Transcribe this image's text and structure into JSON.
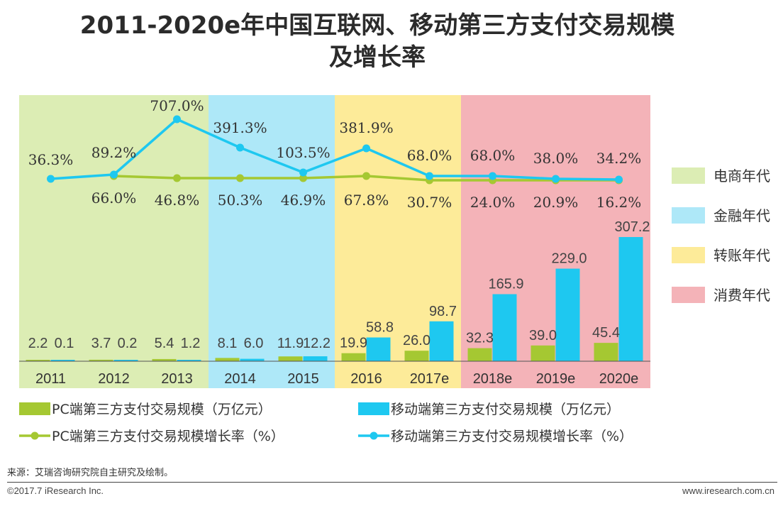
{
  "title_line1": "2011-2020e年中国互联网、移动第三方支付交易规模",
  "title_line2": "及增长率",
  "chart_data": {
    "type": "bar",
    "categories": [
      "2011",
      "2012",
      "2013",
      "2014",
      "2015",
      "2016",
      "2017e",
      "2018e",
      "2019e",
      "2020e"
    ],
    "series": [
      {
        "name": "PC端第三方支付交易规模（万亿元）",
        "kind": "bar",
        "color": "#a5c832",
        "values": [
          2.2,
          3.7,
          5.4,
          8.1,
          11.9,
          19.9,
          26.0,
          32.3,
          39.0,
          45.4
        ],
        "labels": [
          "2.2",
          "3.7",
          "5.4",
          "8.1",
          "11.9",
          "19.9",
          "26.0",
          "32.3",
          "39.0",
          "45.4"
        ]
      },
      {
        "name": "移动端第三方支付交易规模（万亿元）",
        "kind": "bar",
        "color": "#1ec8f0",
        "values": [
          0.1,
          0.2,
          1.2,
          6.0,
          12.2,
          58.8,
          98.7,
          165.9,
          229.0,
          307.2
        ],
        "labels": [
          "0.1",
          "0.2",
          "1.2",
          "6.0",
          "12.2",
          "58.8",
          "98.7",
          "165.9",
          "229.0",
          "307.2"
        ]
      },
      {
        "name": "PC端第三方支付交易规模增长率（%）",
        "kind": "line",
        "color": "#a5c832",
        "values": [
          null,
          66.0,
          46.8,
          50.3,
          46.9,
          67.8,
          30.7,
          24.0,
          20.9,
          16.2
        ],
        "labels": [
          "",
          "66.0%",
          "46.8%",
          "50.3%",
          "46.9%",
          "67.8%",
          "30.7%",
          "24.0%",
          "20.9%",
          "16.2%"
        ]
      },
      {
        "name": "移动端第三方支付交易规模增长率（%）",
        "kind": "line",
        "color": "#1ec8f0",
        "values": [
          36.3,
          89.2,
          707.0,
          391.3,
          103.5,
          381.9,
          68.0,
          68.0,
          38.0,
          34.2
        ],
        "labels": [
          "36.3%",
          "89.2%",
          "707.0%",
          "391.3%",
          "103.5%",
          "381.9%",
          "68.0%",
          "68.0%",
          "38.0%",
          "34.2%"
        ]
      }
    ],
    "eras": [
      {
        "name": "电商年代",
        "color": "#dcedb4",
        "from": 0,
        "to": 2
      },
      {
        "name": "金融年代",
        "color": "#aee8f8",
        "from": 3,
        "to": 4
      },
      {
        "name": "转账年代",
        "color": "#fdeb99",
        "from": 5,
        "to": 6
      },
      {
        "name": "消费年代",
        "color": "#f4b3b8",
        "from": 7,
        "to": 9
      }
    ],
    "bar_ylim": [
      0,
      360
    ],
    "line_ylim": [
      0,
      800
    ]
  },
  "source_note": "来源：艾瑞咨询研究院自主研究及绘制。",
  "copyright": "©2017.7 iResearch Inc.",
  "website": "www.iresearch.com.cn"
}
